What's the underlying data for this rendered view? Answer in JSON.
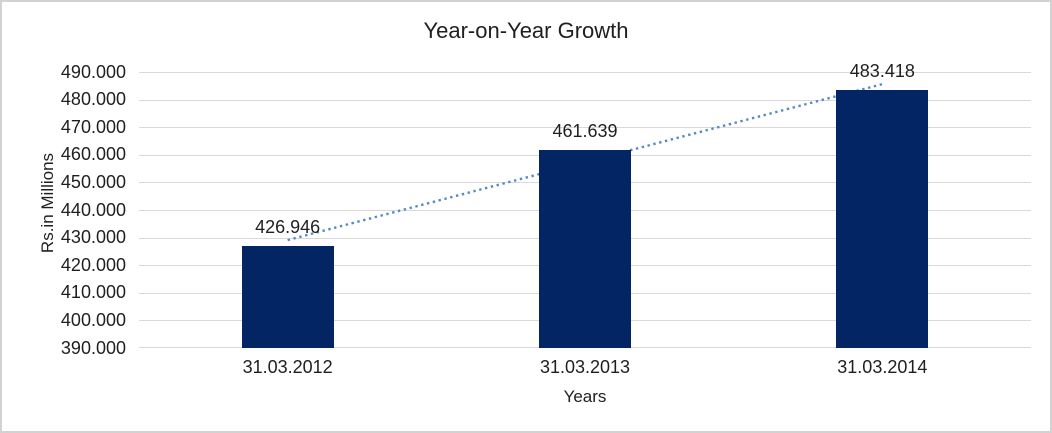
{
  "chart_data": {
    "type": "bar",
    "title": "Year-on-Year Growth",
    "categories": [
      "31.03.2012",
      "31.03.2013",
      "31.03.2014"
    ],
    "values": [
      426.946,
      461.639,
      483.418
    ],
    "value_labels": [
      "426.946",
      "461.639",
      "483.418"
    ],
    "xlabel": "Years",
    "ylabel": "Rs.in Millions",
    "ylim": [
      390,
      490
    ],
    "y_tick_step": 10,
    "y_tick_labels": [
      "490.000",
      "480.000",
      "470.000",
      "460.000",
      "450.000",
      "440.000",
      "430.000",
      "420.000",
      "410.000",
      "400.000",
      "390.000"
    ],
    "grid": true,
    "legend": "none",
    "trendline": {
      "type": "linear",
      "style": "dotted",
      "start_value": 429.1,
      "end_value": 485.6,
      "color": "#5589C8"
    },
    "colors": {
      "bar": "#042564",
      "gridline": "#D9D9D9",
      "axis_line": "#D9D9D9",
      "text": "#1F1F1F",
      "border": "#D2D2D2",
      "background": "#FFFFFF"
    }
  }
}
